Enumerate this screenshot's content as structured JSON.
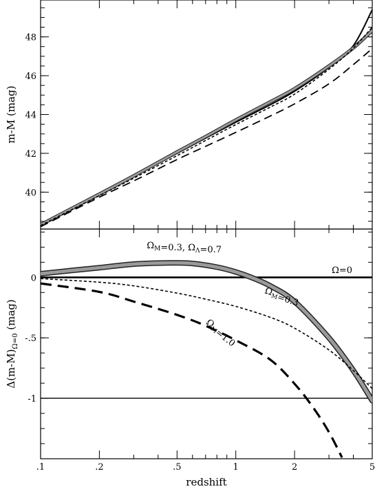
{
  "chart_data": [
    {
      "type": "line",
      "panel": "top",
      "xscale": "log",
      "xlim": [
        0.1,
        5
      ],
      "ylim": [
        38.1,
        49.9
      ],
      "xticks": [
        0.1,
        0.2,
        0.5,
        1,
        2,
        5
      ],
      "yticks": [
        40,
        42,
        44,
        46,
        48
      ],
      "ytick_labels": [
        "40",
        "42",
        "44",
        "46",
        "48"
      ],
      "ylabel": "m-M (mag)",
      "xlabel": "",
      "grid": false,
      "series": [
        {
          "style": "solid",
          "x": [
            0.1,
            0.2,
            0.3,
            0.5,
            0.7,
            1,
            1.5,
            2,
            3,
            4,
            5
          ],
          "values": [
            38.3,
            39.87,
            40.8,
            42.0,
            42.78,
            43.6,
            44.5,
            45.2,
            46.42,
            47.55,
            49.4
          ]
        },
        {
          "style": "thick-gray",
          "x": [
            0.1,
            0.2,
            0.3,
            0.5,
            0.7,
            1,
            1.5,
            2,
            3,
            4,
            5
          ],
          "values": [
            38.32,
            39.9,
            40.84,
            42.07,
            42.86,
            43.72,
            44.65,
            45.33,
            46.5,
            47.43,
            48.33
          ]
        },
        {
          "style": "short-dash",
          "x": [
            0.1,
            0.2,
            0.3,
            0.5,
            0.7,
            1,
            1.5,
            2,
            3,
            4,
            5
          ],
          "values": [
            38.28,
            39.82,
            40.72,
            41.88,
            42.66,
            43.48,
            44.38,
            45.05,
            46.33,
            47.42,
            48.5
          ]
        },
        {
          "style": "long-dash",
          "x": [
            0.1,
            0.2,
            0.3,
            0.5,
            0.7,
            1,
            1.5,
            2,
            3,
            4,
            5
          ],
          "values": [
            38.22,
            39.74,
            40.58,
            41.68,
            42.36,
            43.08,
            43.92,
            44.55,
            45.58,
            46.57,
            47.4
          ]
        }
      ]
    },
    {
      "type": "line",
      "panel": "bottom",
      "xscale": "log",
      "xlim": [
        0.1,
        5
      ],
      "ylim": [
        -1.5,
        0.4
      ],
      "xticks": [
        0.1,
        0.2,
        0.5,
        1,
        2,
        5
      ],
      "xtick_labels": [
        ".1",
        ".2",
        ".5",
        "1",
        "2",
        "5"
      ],
      "yticks": [
        0,
        -0.5,
        -1
      ],
      "ytick_labels": [
        "0",
        "-.5",
        "-1"
      ],
      "xlabel": "redshift",
      "ylabel": "Δ(m-M)",
      "ylabel_sub": "Ω=0",
      "ylabel_tail": " (mag)",
      "grid": false,
      "hlines": [
        0,
        -1
      ],
      "series": [
        {
          "name": "Ω=0",
          "style": "solid",
          "x": [
            0.1,
            5
          ],
          "values": [
            0,
            0
          ]
        },
        {
          "style": "thick-gray",
          "x": [
            0.1,
            0.15,
            0.2,
            0.3,
            0.45,
            0.6,
            0.8,
            1,
            1.2,
            1.5,
            2,
            3,
            4,
            5
          ],
          "values": [
            0.03,
            0.06,
            0.08,
            0.11,
            0.12,
            0.115,
            0.085,
            0.045,
            0.0,
            -0.07,
            -0.2,
            -0.5,
            -0.77,
            -1.02
          ]
        },
        {
          "style": "short-dash",
          "x": [
            0.1,
            0.2,
            0.3,
            0.5,
            0.7,
            1,
            1.5,
            2,
            3,
            4,
            5
          ],
          "values": [
            -0.01,
            -0.04,
            -0.07,
            -0.13,
            -0.18,
            -0.24,
            -0.33,
            -0.42,
            -0.6,
            -0.77,
            -0.92
          ]
        },
        {
          "style": "long-dash",
          "x": [
            0.1,
            0.2,
            0.3,
            0.5,
            0.7,
            1,
            1.5,
            2,
            2.5,
            3,
            3.5
          ],
          "values": [
            -0.05,
            -0.12,
            -0.2,
            -0.31,
            -0.4,
            -0.52,
            -0.68,
            -0.88,
            -1.08,
            -1.28,
            -1.49
          ]
        }
      ],
      "annotations": [
        {
          "main": "Ω",
          "sub": "M",
          "rest": "=0.3, ",
          "main2": "Ω",
          "sub2": "Λ",
          "rest2": "=0.7",
          "x": 0.35,
          "y": 0.24,
          "rotate": 0
        },
        {
          "main": "Ω=0",
          "x": 3.1,
          "y": 0.035,
          "rotate": 0
        },
        {
          "main": "Ω",
          "sub": "M",
          "rest": "=0.3",
          "x": 1.4,
          "y": -0.13,
          "rotate": 18
        },
        {
          "main": "Ω",
          "sub": "M",
          "rest": "=1.0",
          "x": 0.7,
          "y": -0.38,
          "rotate": 38
        }
      ]
    }
  ]
}
